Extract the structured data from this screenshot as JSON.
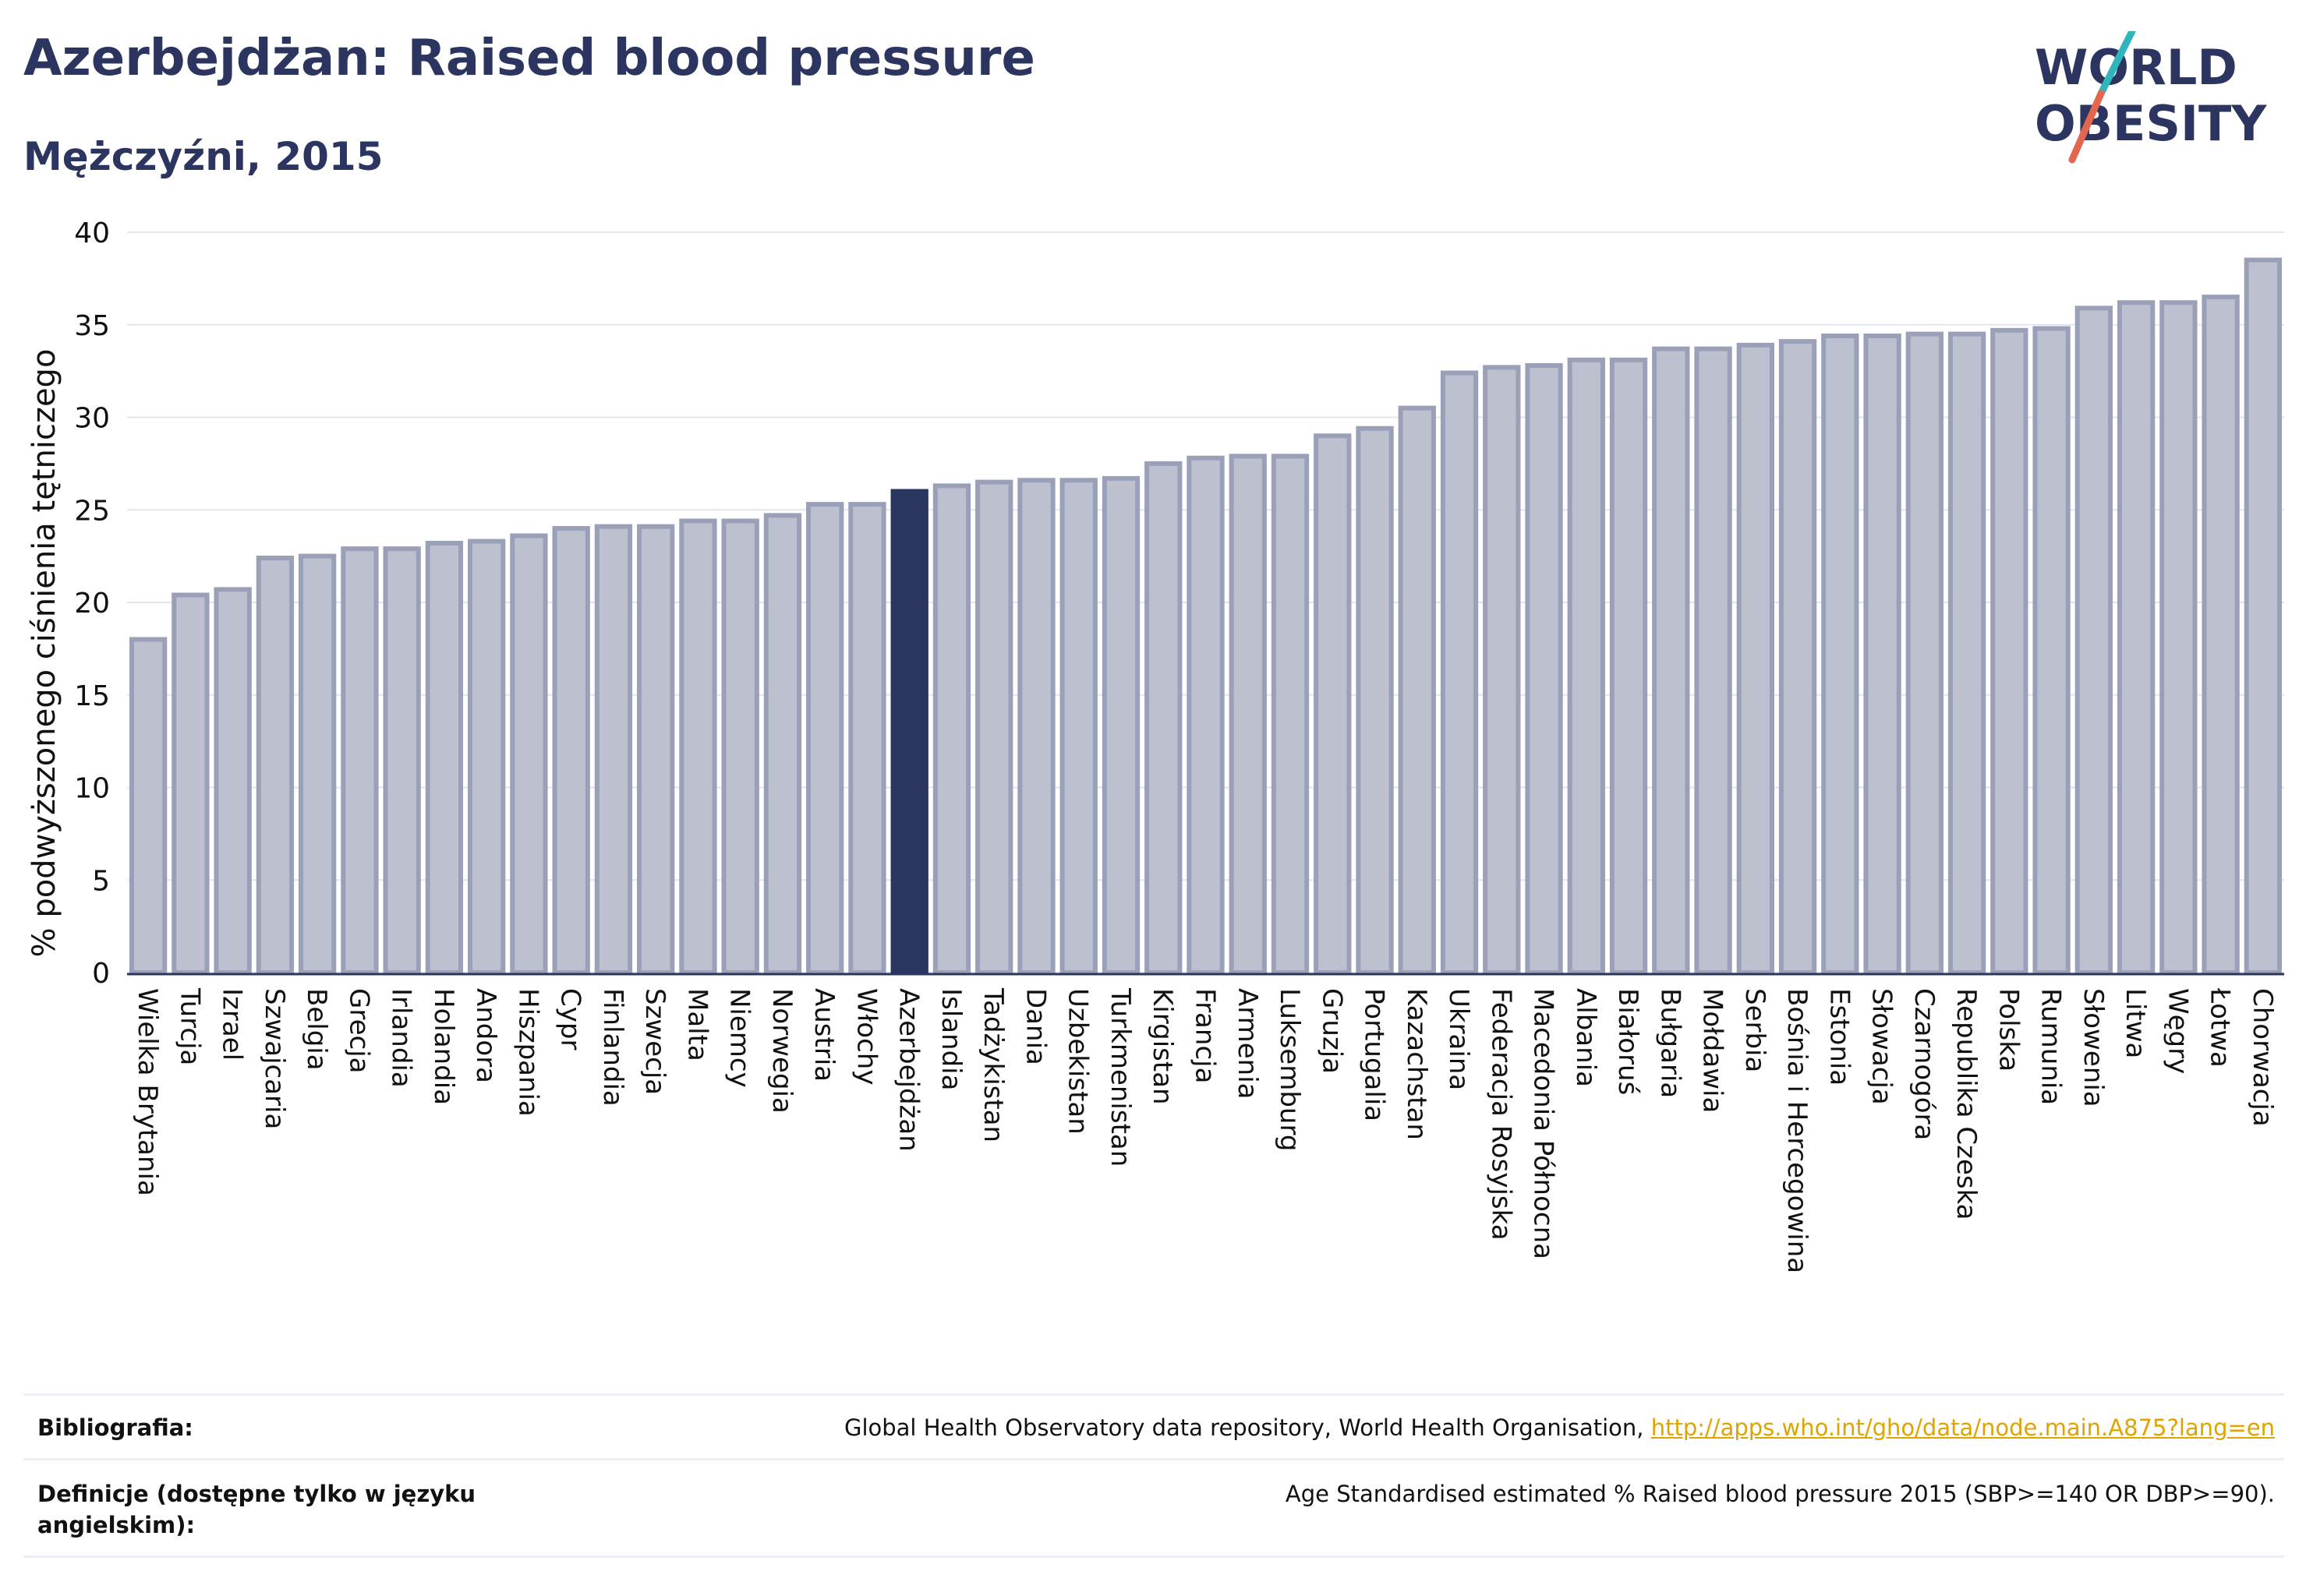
{
  "header": {
    "title": "Azerbejdżan: Raised blood pressure",
    "subtitle": "Mężczyźni, 2015"
  },
  "logo": {
    "line1": "WORLD",
    "line2": "OBESITY",
    "accent_colors": [
      "#2fb6bc",
      "#e5664f"
    ]
  },
  "colors": {
    "bar": "#bcc0cf",
    "bar_edge": "#9aa0b8",
    "highlight": "#2a3560",
    "text": "#2b355f"
  },
  "chart_data": {
    "type": "bar",
    "ylabel": "% podwyższonego ciśnienia tętniczego",
    "xlabel": "",
    "ylim": [
      0,
      40
    ],
    "yticks": [
      0,
      5,
      10,
      15,
      20,
      25,
      30,
      35,
      40
    ],
    "grid": true,
    "highlight": "Azerbejdżan",
    "categories": [
      "Wielka Brytania",
      "Turcja",
      "Izrael",
      "Szwajcaria",
      "Belgia",
      "Grecja",
      "Irlandia",
      "Holandia",
      "Andora",
      "Hiszpania",
      "Cypr",
      "Finlandia",
      "Szwecja",
      "Malta",
      "Niemcy",
      "Norwegia",
      "Austria",
      "Włochy",
      "Azerbejdżan",
      "Islandia",
      "Tadżykistan",
      "Dania",
      "Uzbekistan",
      "Turkmenistan",
      "Kirgistan",
      "Francja",
      "Armenia",
      "Luksemburg",
      "Gruzja",
      "Portugalia",
      "Kazachstan",
      "Ukraina",
      "Federacja Rosyjska",
      "Macedonia Północna",
      "Albania",
      "Białoruś",
      "Bułgaria",
      "Mołdawia",
      "Serbia",
      "Bośnia i Hercegowina",
      "Estonia",
      "Słowacja",
      "Czarnogóra",
      "Republika Czeska",
      "Polska",
      "Rumunia",
      "Słowenia",
      "Litwa",
      "Węgry",
      "Łotwa",
      "Chorwacja"
    ],
    "values": [
      18.0,
      20.4,
      20.7,
      22.4,
      22.5,
      22.9,
      22.9,
      23.2,
      23.3,
      23.6,
      24.0,
      24.1,
      24.1,
      24.4,
      24.4,
      24.7,
      25.3,
      25.3,
      26.0,
      26.3,
      26.5,
      26.6,
      26.6,
      26.7,
      27.5,
      27.8,
      27.9,
      27.9,
      29.0,
      29.4,
      30.5,
      32.4,
      32.7,
      32.8,
      33.1,
      33.1,
      33.7,
      33.7,
      33.9,
      34.1,
      34.4,
      34.4,
      34.5,
      34.5,
      34.7,
      34.8,
      35.9,
      36.2,
      36.2,
      36.5,
      38.5
    ]
  },
  "footer": {
    "bibliography_label": "Bibliografia:",
    "bibliography_text": "Global Health Observatory data repository, World Health Organisation, ",
    "bibliography_link": "http://apps.who.int/gho/data/node.main.A875?lang=en",
    "definitions_label": "Definicje (dostępne tylko w języku angielskim):",
    "definitions_text": "Age Standardised estimated % Raised blood pressure 2015 (SBP>=140 OR DBP>=90)."
  }
}
